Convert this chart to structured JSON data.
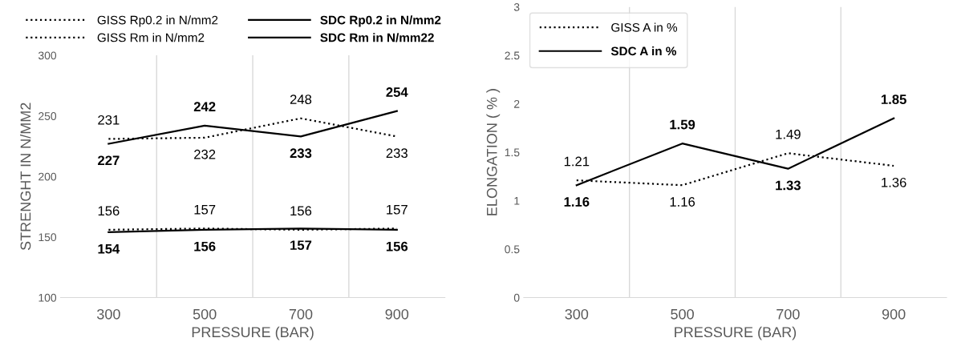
{
  "chart_data": [
    {
      "type": "line",
      "xlabel": "PRESSURE (BAR)",
      "ylabel": "STRENGHT IN N/MM2",
      "categories": [
        "300",
        "500",
        "700",
        "900"
      ],
      "ylim": [
        100,
        300
      ],
      "yticks": [
        100,
        150,
        200,
        250,
        300
      ],
      "grid": "x",
      "legend": "top",
      "data_labels": true,
      "series": [
        {
          "name": "GISS Rp0.2 in N/mm2",
          "color": "#000000",
          "line_style": "dotted",
          "values": [
            156,
            157,
            156,
            157
          ]
        },
        {
          "name": "GISS Rm in N/mm2",
          "color": "#000000",
          "line_style": "dotted",
          "values": [
            231,
            232,
            248,
            233
          ]
        },
        {
          "name": "SDC Rp0.2 in N/mm2",
          "color": "#000000",
          "line_style": "solid",
          "values": [
            154,
            156,
            157,
            156
          ]
        },
        {
          "name": "SDC Rm in N/mm22",
          "color": "#000000",
          "line_style": "solid",
          "values": [
            227,
            242,
            233,
            254
          ]
        }
      ]
    },
    {
      "type": "line",
      "xlabel": "PRESSURE (BAR)",
      "ylabel": "ELONGATION ( % )",
      "categories": [
        "300",
        "500",
        "700",
        "900"
      ],
      "ylim": [
        0,
        3
      ],
      "yticks": [
        0,
        0.5,
        1,
        1.5,
        2,
        2.5,
        3
      ],
      "grid": "x",
      "legend": "top left",
      "data_labels": true,
      "series": [
        {
          "name": "GISS A in %",
          "color": "#000000",
          "line_style": "dotted",
          "values": [
            1.21,
            1.16,
            1.49,
            1.36
          ]
        },
        {
          "name": "SDC A in %",
          "color": "#000000",
          "line_style": "solid",
          "values": [
            1.16,
            1.59,
            1.33,
            1.85
          ]
        }
      ]
    }
  ]
}
